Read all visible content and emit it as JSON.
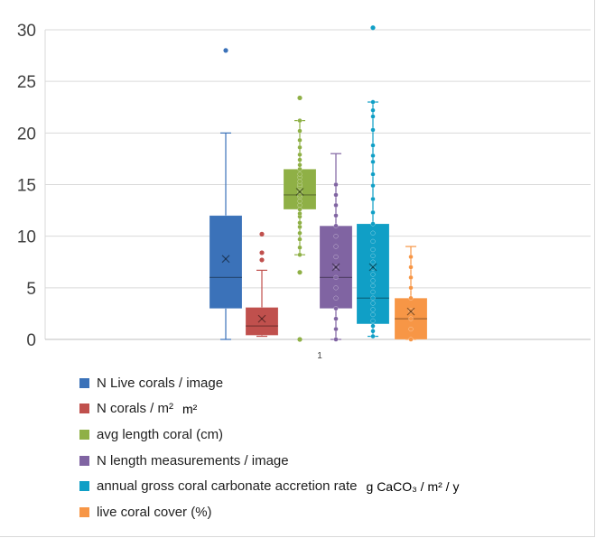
{
  "chart_data": {
    "type": "box",
    "categories": [
      "1"
    ],
    "ylim": [
      0,
      30
    ],
    "yticks": [
      0,
      5,
      10,
      15,
      20,
      25,
      30
    ],
    "grid": true,
    "legend_position": "bottom",
    "series": [
      {
        "name": "N Live corals / image",
        "color": "#3b72b9",
        "min": 0,
        "q1": 3,
        "median": 6,
        "q3": 12,
        "max": 20,
        "mean": 7.8,
        "outliers": [
          28
        ],
        "points": []
      },
      {
        "name": "N corals / m²",
        "unit": "m²",
        "color": "#c0504d",
        "min": 0.3,
        "q1": 0.4,
        "median": 1.3,
        "q3": 3.1,
        "max": 6.7,
        "mean": 2.0,
        "outliers": [
          7.7,
          8.4,
          10.2
        ],
        "points": []
      },
      {
        "name": "avg length coral (cm)",
        "color": "#8fb046",
        "min": 8.2,
        "q1": 12.6,
        "median": 14.0,
        "q3": 16.5,
        "max": 21.2,
        "mean": 14.3,
        "outliers": [
          0.0,
          6.5,
          23.4
        ],
        "points": [
          8.2,
          8.9,
          9.7,
          10.3,
          10.9,
          11.3,
          11.9,
          12.2,
          12.6,
          13.0,
          13.4,
          13.8,
          14.0,
          14.3,
          14.8,
          15.0,
          15.3,
          15.7,
          16.0,
          16.5,
          16.9,
          17.4,
          17.9,
          18.6,
          19.3,
          20.2,
          21.2
        ]
      },
      {
        "name": "N length measurements / image",
        "color": "#8064a2",
        "min": 0,
        "q1": 3,
        "median": 6,
        "q3": 11,
        "max": 18,
        "mean": 7.0,
        "outliers": [],
        "points": [
          0,
          1,
          2,
          3,
          4,
          5,
          6,
          7,
          8,
          9,
          10,
          11,
          12,
          13,
          14,
          15
        ]
      },
      {
        "name": "annual gross coral carbonate accretion rate",
        "unit": "g CaCO₃ / m² / y",
        "color": "#109fc6",
        "min": 0.3,
        "q1": 1.5,
        "median": 4.0,
        "q3": 11.2,
        "max": 23.0,
        "mean": 7.0,
        "outliers": [
          30.2
        ],
        "points": [
          0.3,
          0.8,
          1.3,
          1.8,
          2.4,
          2.9,
          3.5,
          4.0,
          4.6,
          5.2,
          5.7,
          6.3,
          6.9,
          7.5,
          8.1,
          8.7,
          9.5,
          10.3,
          11.2,
          12.3,
          13.6,
          14.9,
          16.0,
          17.2,
          17.8,
          18.8,
          20.3,
          21.6,
          22.2,
          23.0
        ]
      },
      {
        "name": "live coral cover (%)",
        "color": "#f79646",
        "min": 0,
        "q1": 0,
        "median": 2,
        "q3": 4,
        "max": 9,
        "mean": 2.7,
        "outliers": [],
        "points": [
          0,
          1,
          2,
          2.8,
          4,
          5,
          6,
          7,
          8
        ]
      }
    ]
  }
}
